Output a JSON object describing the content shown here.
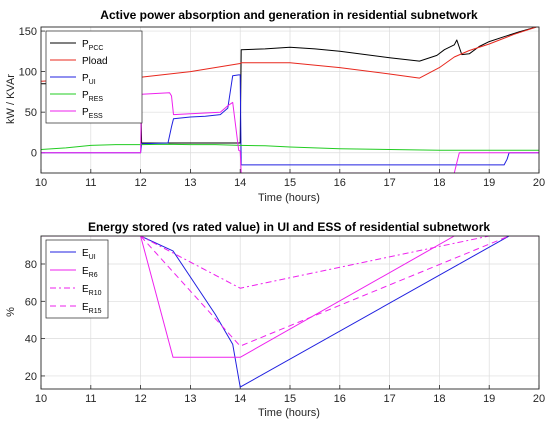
{
  "chart_data": [
    {
      "type": "line",
      "title": "Active power absorption and generation in residential subnetwork",
      "xlabel": "Time (hours)",
      "ylabel": "kW / KVAr",
      "xlim": [
        10,
        20
      ],
      "ylim": [
        -25,
        155
      ],
      "xticks": [
        "10",
        "11",
        "12",
        "13",
        "14",
        "15",
        "16",
        "17",
        "18",
        "19",
        "20"
      ],
      "yticks": [
        "0",
        "50",
        "100",
        "150"
      ],
      "grid": true,
      "legend_position": "top-left",
      "series": [
        {
          "name": "P",
          "sub": "PCC",
          "color": "#000000",
          "dash": "",
          "x": [
            10,
            11.9,
            12.0,
            12.02,
            13.0,
            13.7,
            13.97,
            14.0,
            14.02,
            14.5,
            15.0,
            15.5,
            16.0,
            17.0,
            17.6,
            17.95,
            18.1,
            18.3,
            18.35,
            18.45,
            18.6,
            18.8,
            19.0,
            19.3,
            19.6,
            20.0
          ],
          "y": [
            85,
            85,
            85,
            12,
            12,
            12,
            12,
            12,
            127,
            128,
            130,
            128,
            125,
            117,
            113,
            120,
            127,
            133,
            139,
            121,
            122,
            131,
            137,
            143,
            149,
            156
          ]
        },
        {
          "name": "Pload",
          "sub": "",
          "color": "#e8281e",
          "dash": "",
          "x": [
            10,
            11.0,
            12.0,
            13.0,
            14.0,
            14.02,
            15.0,
            16.0,
            17.0,
            17.6,
            18.0,
            18.3,
            18.6,
            19.0,
            19.5,
            20.0
          ],
          "y": [
            88,
            91,
            93,
            100,
            110,
            111,
            111,
            105,
            97,
            92,
            105,
            118,
            126,
            134,
            146,
            156
          ]
        },
        {
          "name": "P",
          "sub": "UI",
          "color": "#2020e0",
          "dash": "",
          "x": [
            10,
            11.9,
            11.98,
            12.0,
            12.02,
            12.55,
            12.62,
            12.66,
            13.0,
            13.3,
            13.6,
            13.75,
            13.85,
            13.97,
            14.0,
            14.02,
            15.0,
            16.0,
            17.0,
            18.0,
            19.3,
            19.36,
            19.4,
            20.0
          ],
          "y": [
            0,
            0,
            0,
            0,
            11,
            12,
            32,
            42,
            44,
            45,
            47,
            55,
            95,
            96,
            96,
            -15,
            -15,
            -15,
            -15,
            -15,
            -15,
            -8,
            0,
            0
          ]
        },
        {
          "name": "P",
          "sub": "RES",
          "color": "#22cc22",
          "dash": "",
          "x": [
            10,
            10.5,
            11.0,
            11.5,
            12.0,
            12.5,
            13.0,
            13.5,
            14.0,
            14.5,
            15.0,
            16.0,
            17.0,
            18.0,
            19.0,
            20.0
          ],
          "y": [
            4,
            6,
            9,
            10,
            10,
            10.5,
            10,
            10,
            9,
            8.5,
            7,
            5,
            4,
            3,
            3,
            3
          ]
        },
        {
          "name": "P",
          "sub": "ESS",
          "color": "#ee22ee",
          "dash": "",
          "x": [
            10,
            11.9,
            11.98,
            12.0,
            12.02,
            12.3,
            12.58,
            12.62,
            12.66,
            13.0,
            13.3,
            13.6,
            13.75,
            13.85,
            13.97,
            14.0,
            14.02,
            16.0,
            18.0,
            18.3,
            18.36,
            18.4,
            20.0
          ],
          "y": [
            0,
            0,
            0,
            0,
            72,
            73,
            74,
            70,
            47,
            48,
            49,
            50,
            58,
            62,
            3,
            2,
            -25,
            -25,
            -25,
            -25,
            -10,
            0,
            0
          ]
        }
      ]
    },
    {
      "type": "line",
      "title": "Energy stored (vs rated value) in UI and ESS of residential subnetwork",
      "xlabel": "Time (hours)",
      "ylabel": "%",
      "xlim": [
        10,
        20
      ],
      "ylim": [
        13,
        95
      ],
      "xticks": [
        "10",
        "11",
        "12",
        "13",
        "14",
        "15",
        "16",
        "17",
        "18",
        "19",
        "20"
      ],
      "yticks": [
        "20",
        "40",
        "60",
        "80"
      ],
      "grid": true,
      "legend_position": "top-left",
      "series": [
        {
          "name": "E",
          "sub": "UI",
          "color": "#2020e0",
          "dash": "",
          "x": [
            10,
            12.0,
            12.65,
            13.0,
            13.5,
            13.85,
            14.0,
            19.4,
            20.0
          ],
          "y": [
            95,
            95,
            87,
            73,
            53,
            37,
            14,
            95,
            95
          ]
        },
        {
          "name": "E",
          "sub": "R6",
          "color": "#ee22ee",
          "dash": "",
          "x": [
            10,
            12.0,
            12.65,
            14.0,
            18.3,
            20.0
          ],
          "y": [
            95,
            95,
            30,
            30,
            95,
            95
          ]
        },
        {
          "name": "E",
          "sub": "R10",
          "color": "#ee22ee",
          "dash": "6,3,2,3",
          "x": [
            10,
            12.0,
            14.0,
            19.0,
            20.0
          ],
          "y": [
            95,
            95,
            67,
            95,
            95
          ]
        },
        {
          "name": "E",
          "sub": "R15",
          "color": "#ee22ee",
          "dash": "6,4",
          "x": [
            10,
            12.0,
            14.0,
            19.4,
            20.0
          ],
          "y": [
            95,
            95,
            36,
            95,
            95
          ]
        }
      ]
    }
  ]
}
